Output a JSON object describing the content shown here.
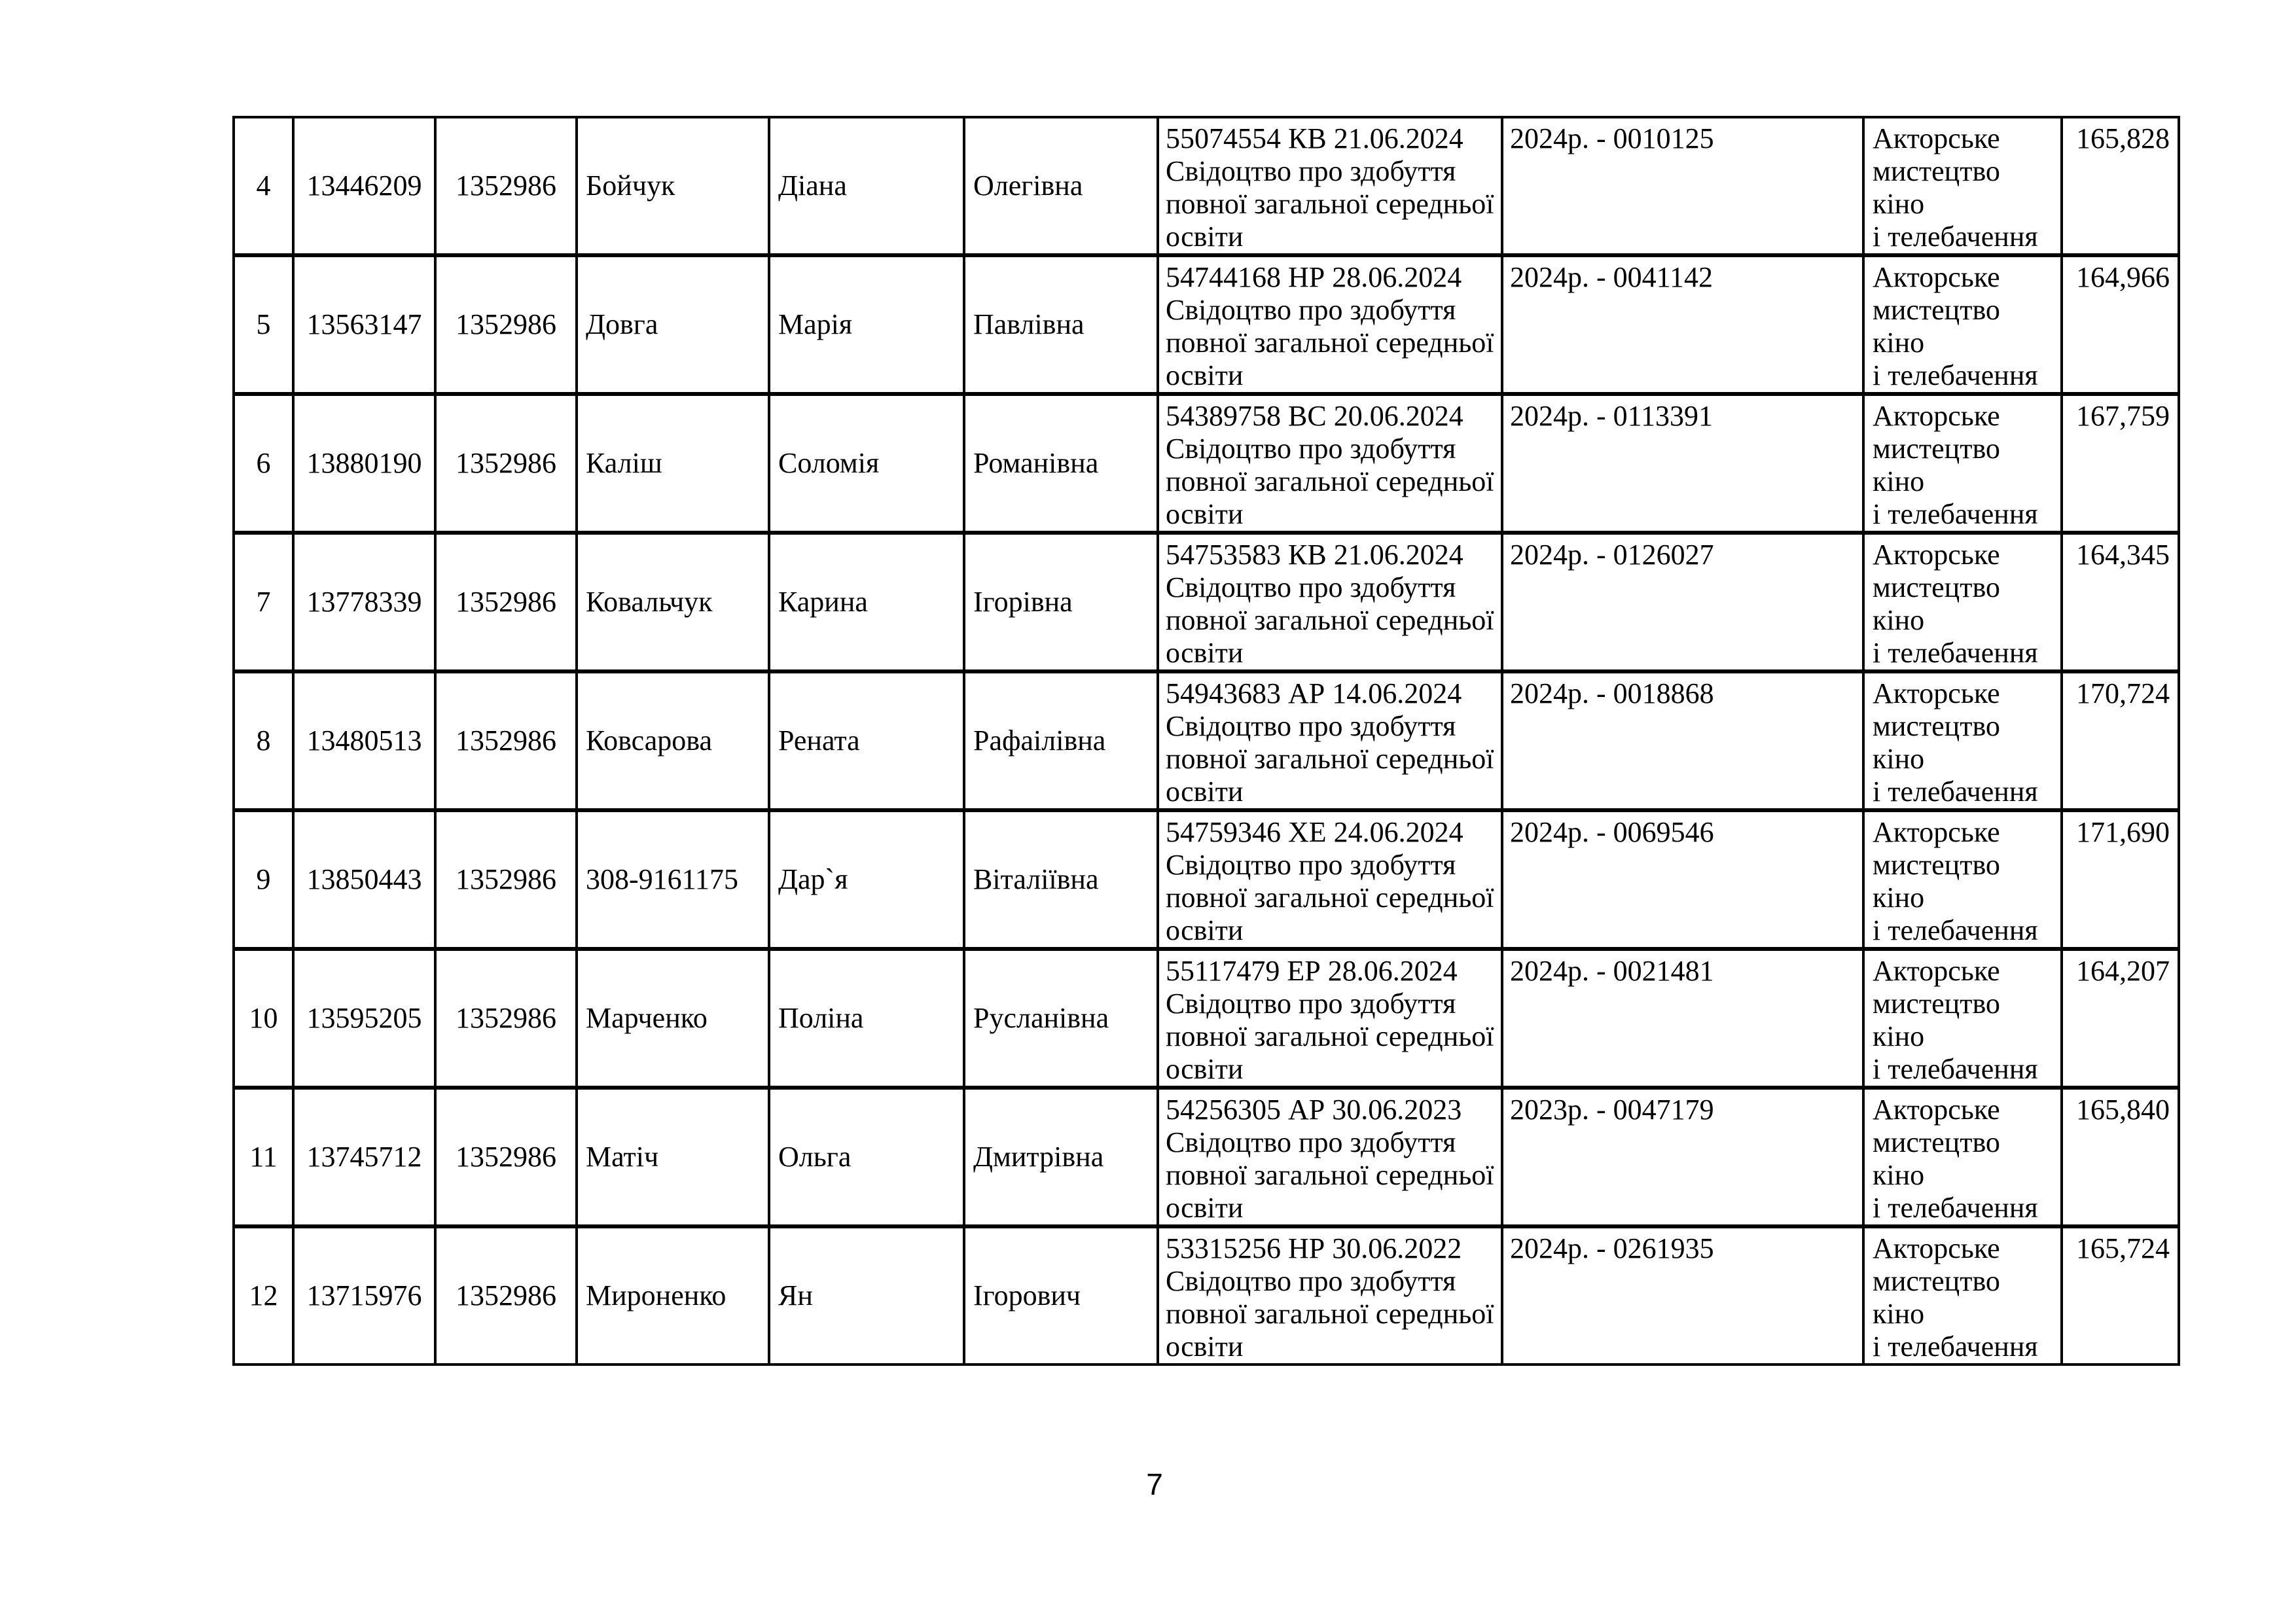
{
  "colors": {
    "background": "#ffffff",
    "text": "#000000",
    "table_border": "#000000"
  },
  "page": {
    "number": "7"
  },
  "table": {
    "rows": [
      {
        "num": "4",
        "id": "13446209",
        "code": "1352986",
        "surname": "Бойчук",
        "name": "Діана",
        "patronymic": "Олегівна",
        "document": "55074554 КВ 21.06.2024\nСвідоцтво про здобуття\nповної загальної середньої\nосвіти",
        "year_number": "2024р. - 0010125",
        "program": "Акторське\nмистецтво кіно\nі телебачення",
        "score": "165,828"
      },
      {
        "num": "5",
        "id": "13563147",
        "code": "1352986",
        "surname": "Довга",
        "name": "Марія",
        "patronymic": "Павлівна",
        "document": "54744168 НР 28.06.2024\nСвідоцтво про здобуття\nповної загальної середньої\nосвіти",
        "year_number": "2024р. - 0041142",
        "program": "Акторське\nмистецтво кіно\nі телебачення",
        "score": "164,966"
      },
      {
        "num": "6",
        "id": "13880190",
        "code": "1352986",
        "surname": "Каліш",
        "name": "Соломія",
        "patronymic": "Романівна",
        "document": "54389758 ВС 20.06.2024\nСвідоцтво про здобуття\nповної загальної середньої\nосвіти",
        "year_number": "2024р. - 0113391",
        "program": "Акторське\nмистецтво кіно\nі телебачення",
        "score": "167,759"
      },
      {
        "num": "7",
        "id": "13778339",
        "code": "1352986",
        "surname": "Ковальчук",
        "name": "Карина",
        "patronymic": "Ігорівна",
        "document": "54753583 КВ 21.06.2024\nСвідоцтво про здобуття\nповної загальної середньої\nосвіти",
        "year_number": "2024р. - 0126027",
        "program": "Акторське\nмистецтво кіно\nі телебачення",
        "score": "164,345"
      },
      {
        "num": "8",
        "id": "13480513",
        "code": "1352986",
        "surname": "Ковсарова",
        "name": "Рената",
        "patronymic": "Рафаілівна",
        "document": "54943683 АР 14.06.2024\nСвідоцтво про здобуття\nповної загальної середньої\nосвіти",
        "year_number": "2024р. - 0018868",
        "program": "Акторське\nмистецтво кіно\nі телебачення",
        "score": "170,724"
      },
      {
        "num": "9",
        "id": "13850443",
        "code": "1352986",
        "surname": "308-9161175",
        "name": "Дар`я",
        "patronymic": "Віталіївна",
        "document": "54759346 ХЕ 24.06.2024\nСвідоцтво про здобуття\nповної загальної середньої\nосвіти",
        "year_number": "2024р. - 0069546",
        "program": "Акторське\nмистецтво кіно\nі телебачення",
        "score": "171,690"
      },
      {
        "num": "10",
        "id": "13595205",
        "code": "1352986",
        "surname": "Марченко",
        "name": "Поліна",
        "patronymic": "Русланівна",
        "document": "55117479 ЕР 28.06.2024\nСвідоцтво про здобуття\nповної загальної середньої\nосвіти",
        "year_number": "2024р. - 0021481",
        "program": "Акторське\nмистецтво кіно\nі телебачення",
        "score": "164,207"
      },
      {
        "num": "11",
        "id": "13745712",
        "code": "1352986",
        "surname": "Матіч",
        "name": "Ольга",
        "patronymic": "Дмитрівна",
        "document": "54256305 АР 30.06.2023\nСвідоцтво про здобуття\nповної загальної середньої\nосвіти",
        "year_number": "2023р. - 0047179",
        "program": "Акторське\nмистецтво кіно\nі телебачення",
        "score": "165,840"
      },
      {
        "num": "12",
        "id": "13715976",
        "code": "1352986",
        "surname": "Мироненко",
        "name": "Ян",
        "patronymic": "Ігорович",
        "document": "53315256 НР 30.06.2022\nСвідоцтво про здобуття\nповної загальної середньої\nосвіти",
        "year_number": "2024р. - 0261935",
        "program": "Акторське\nмистецтво кіно\nі телебачення",
        "score": "165,724"
      }
    ]
  }
}
